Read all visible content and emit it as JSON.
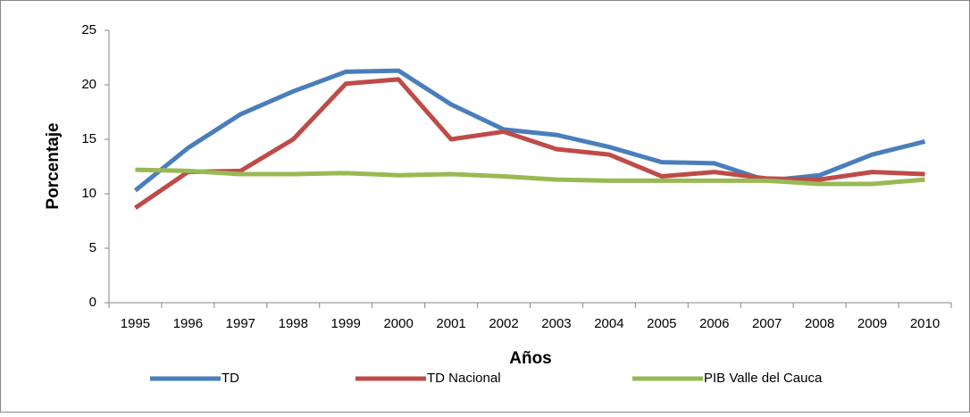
{
  "chart_data": {
    "type": "line",
    "xlabel": "Años",
    "ylabel": "Porcentaje",
    "categories": [
      "1995",
      "1996",
      "1997",
      "1998",
      "1999",
      "2000",
      "2001",
      "2002",
      "2003",
      "2004",
      "2005",
      "2006",
      "2007",
      "2008",
      "2009",
      "2010"
    ],
    "series": [
      {
        "name": "TD",
        "color": "#4a7ebb",
        "values": [
          10.3,
          14.2,
          17.3,
          19.4,
          21.2,
          21.3,
          18.2,
          15.9,
          15.4,
          14.3,
          12.9,
          12.8,
          11.2,
          11.7,
          13.6,
          14.8
        ]
      },
      {
        "name": "TD Nacional",
        "color": "#be4b48",
        "values": [
          8.7,
          12.0,
          12.1,
          15.0,
          20.1,
          20.5,
          15.0,
          15.7,
          14.1,
          13.6,
          11.6,
          12.0,
          11.4,
          11.3,
          12.0,
          11.8
        ]
      },
      {
        "name": "PIB Valle del Cauca",
        "color": "#98b954",
        "values": [
          12.2,
          12.1,
          11.8,
          11.8,
          11.9,
          11.7,
          11.8,
          11.6,
          11.3,
          11.2,
          11.2,
          11.2,
          11.2,
          10.9,
          10.9,
          11.3
        ]
      }
    ],
    "ylim": [
      0,
      25
    ],
    "yticks": [
      0,
      5,
      10,
      15,
      20,
      25
    ],
    "grid": false,
    "legend": "bottom"
  }
}
